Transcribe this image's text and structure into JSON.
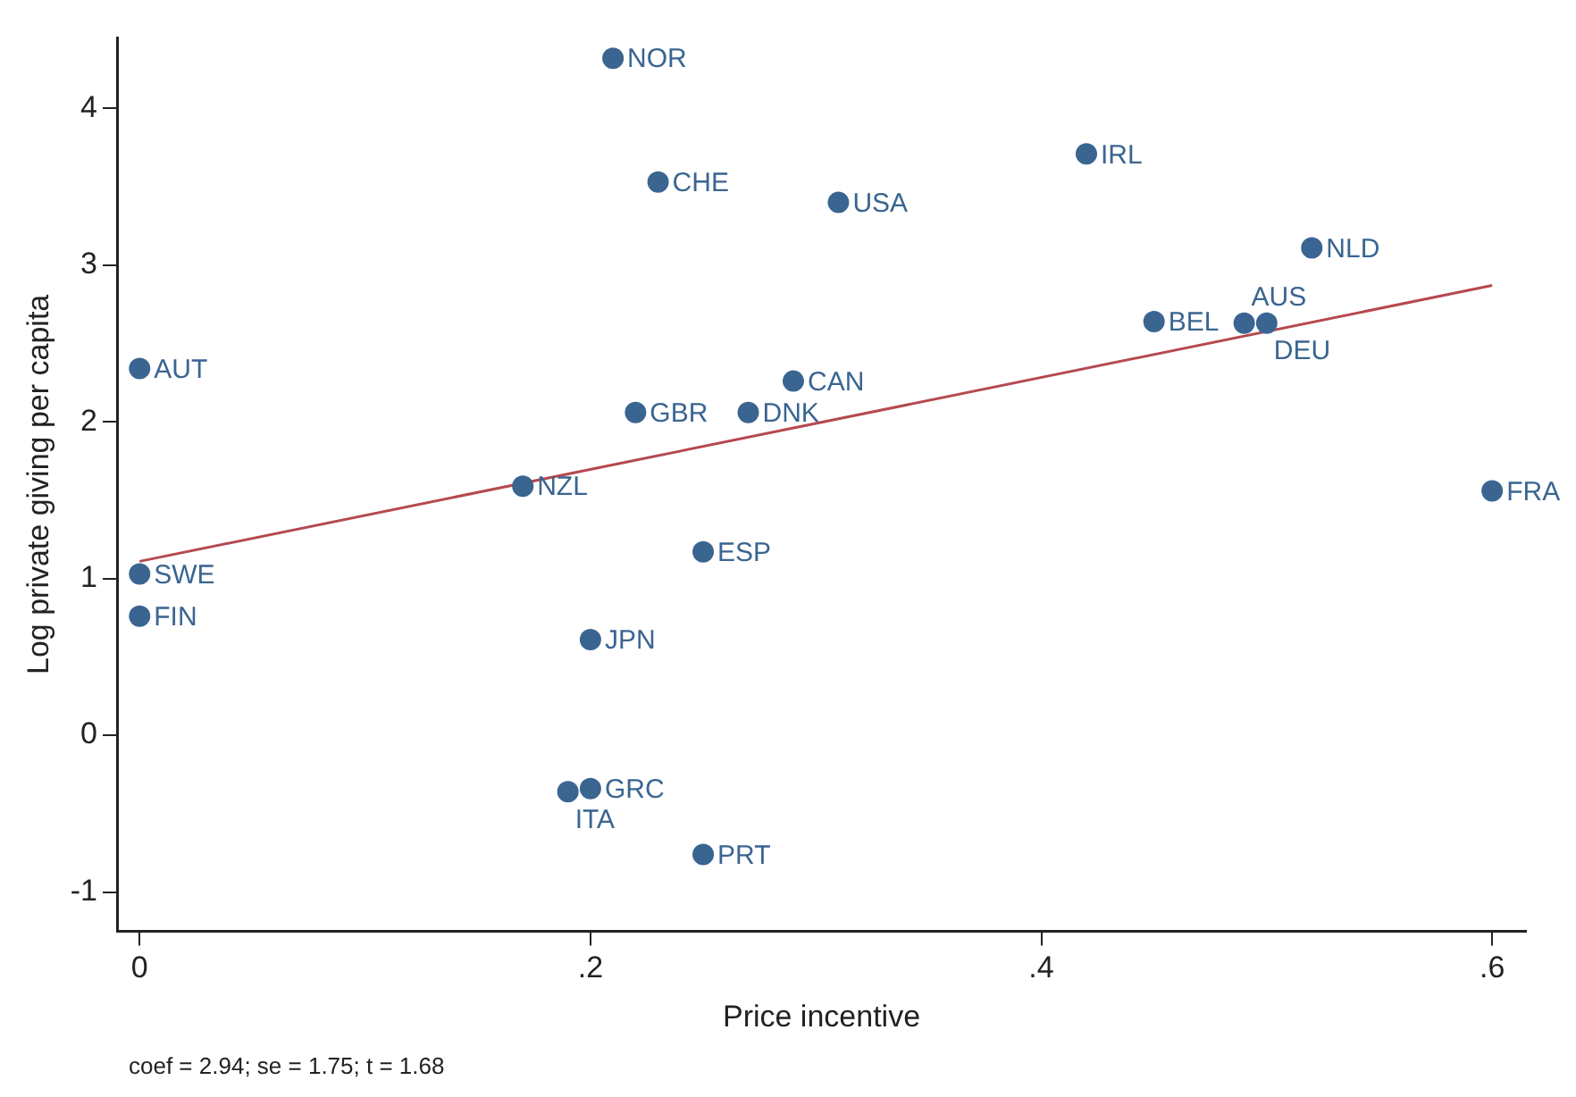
{
  "chart_data": {
    "type": "scatter",
    "xlabel": "Price incentive",
    "ylabel": "Log private giving per capita",
    "annotations": [
      "coef = 2.94; se = 1.75; t = 1.68"
    ],
    "xlim": [
      -0.01,
      0.615
    ],
    "ylim": [
      -1.25,
      4.45
    ],
    "xticks": [
      0,
      {
        "value": 0.2,
        "label": ".2"
      },
      {
        "value": 0.4,
        "label": ".4"
      },
      {
        "value": 0.6,
        "label": ".6"
      }
    ],
    "yticks": [
      -1,
      0,
      1,
      2,
      3,
      4
    ],
    "grid": false,
    "legend": false,
    "marker": "circle",
    "series": [
      {
        "color": "#3a6591",
        "x": [
          0.21,
          0.23,
          0.31,
          0.42,
          0.52,
          0.45,
          0.49,
          0.5,
          0,
          0.29,
          0.22,
          0.27,
          0.17,
          0.6,
          0,
          0.25,
          0,
          0.2,
          0.2,
          0.19,
          0.25
        ],
        "values": [
          4.32,
          3.53,
          3.4,
          3.71,
          3.11,
          2.64,
          2.63,
          2.63,
          2.34,
          2.26,
          2.06,
          2.06,
          1.59,
          1.56,
          1.03,
          1.17,
          0.76,
          0.61,
          -0.34,
          -0.36,
          -0.76
        ],
        "value_labels": [
          "NOR",
          "CHE",
          "USA",
          "IRL",
          "NLD",
          "BEL",
          "AUS",
          "DEU",
          "AUT",
          "CAN",
          "GBR",
          "DNK",
          "NZL",
          "FRA",
          "SWE",
          "ESP",
          "FIN",
          "JPN",
          "GRC",
          "ITA",
          "PRT"
        ]
      },
      {
        "type": "line",
        "color": "#b5494f",
        "x": [
          0,
          0.6
        ],
        "values": [
          1.11,
          2.87
        ],
        "marker": "none",
        "line_style": "solid"
      }
    ]
  }
}
